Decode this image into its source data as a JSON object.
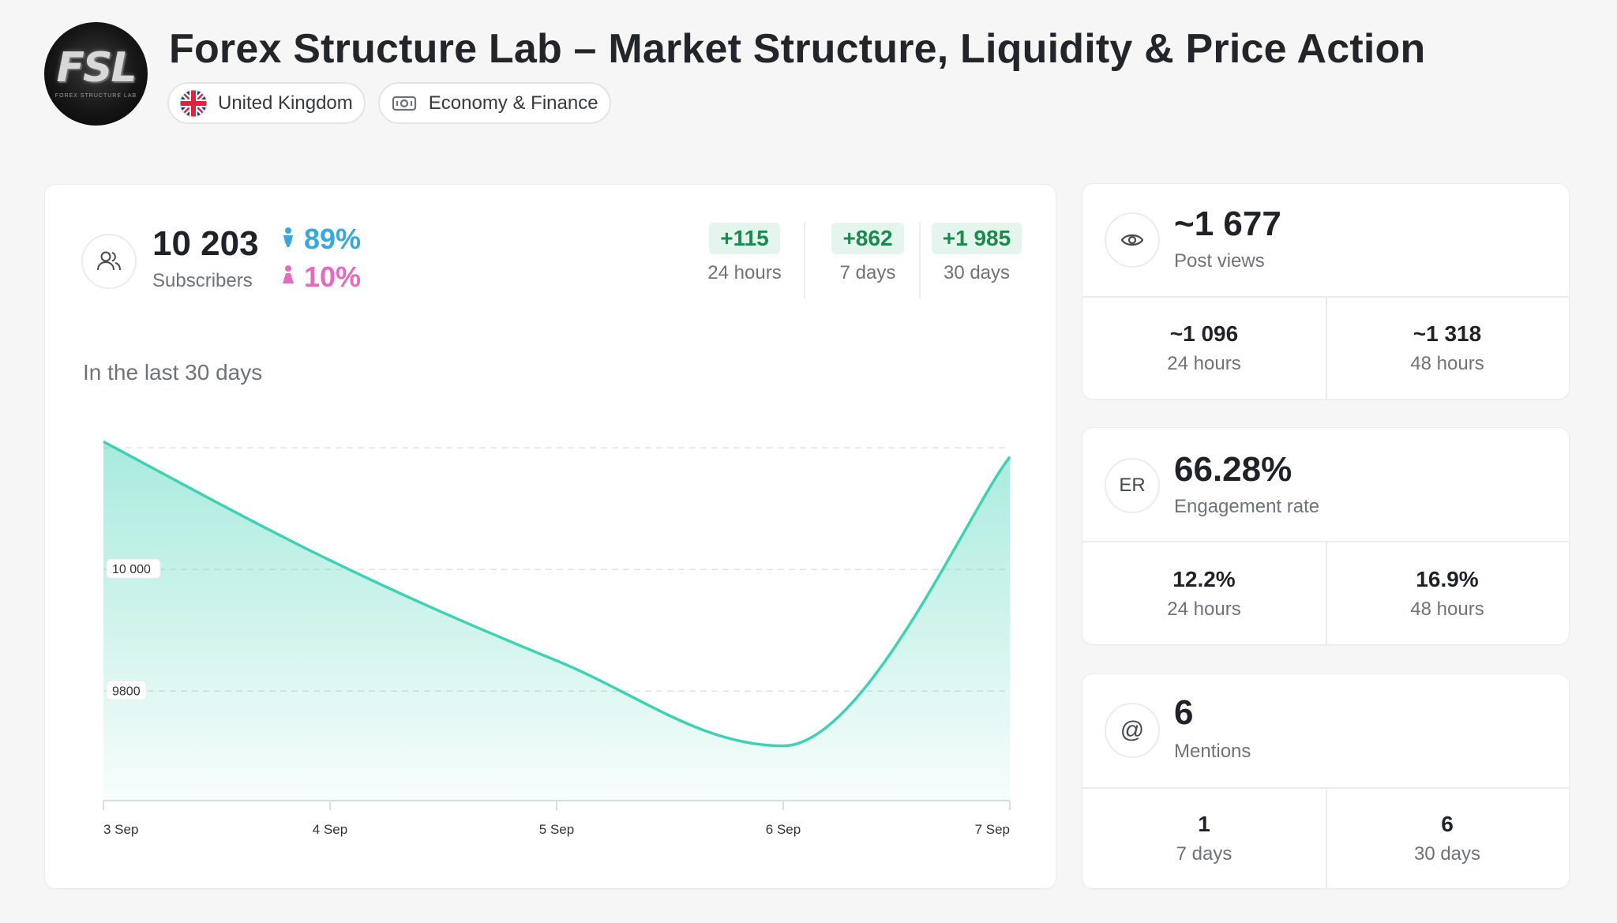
{
  "channel": {
    "title": "Forex Structure Lab – Market Structure, Liquidity & Price Action",
    "avatar_text": "FSL",
    "avatar_subtext": "FOREX STRUCTURE LAB",
    "country": "United Kingdom",
    "category": "Economy & Finance"
  },
  "subscribers": {
    "count": "10 203",
    "label": "Subscribers",
    "male_pct": "89%",
    "female_pct": "10%",
    "growth": [
      {
        "value": "+115",
        "label": "24 hours"
      },
      {
        "value": "+862",
        "label": "7 days"
      },
      {
        "value": "+1 985",
        "label": "30 days"
      }
    ]
  },
  "chart_title": "In the last 30 days",
  "chart_data": {
    "type": "area",
    "x": [
      "3 Sep",
      "4 Sep",
      "5 Sep",
      "6 Sep",
      "7 Sep"
    ],
    "values": [
      10210,
      10015,
      9850,
      9710,
      10185
    ],
    "ylim": [
      9620,
      10230
    ],
    "gridlines": [
      9800,
      10000,
      10200
    ],
    "gridline_labels": [
      "9800",
      "10 000"
    ],
    "color": "#3fd1b4",
    "grid": true
  },
  "post_views": {
    "total": "~1 677",
    "label": "Post views",
    "cells": [
      {
        "value": "~1 096",
        "label": "24 hours"
      },
      {
        "value": "~1 318",
        "label": "48 hours"
      }
    ]
  },
  "engagement": {
    "icon_text": "ER",
    "total": "66.28%",
    "label": "Engagement rate",
    "cells": [
      {
        "value": "12.2%",
        "label": "24 hours"
      },
      {
        "value": "16.9%",
        "label": "48 hours"
      }
    ]
  },
  "mentions": {
    "icon_text": "@",
    "total": "6",
    "label": "Mentions",
    "cells": [
      {
        "value": "1",
        "label": "7 days"
      },
      {
        "value": "6",
        "label": "30 days"
      }
    ]
  },
  "colors": {
    "accent": "#3fd1b4",
    "growth_text": "#1b8a4f",
    "growth_bg": "#e3f5ec",
    "male": "#3aa8de",
    "female": "#e46bbf"
  },
  "icons": {
    "subscribers": "users-icon",
    "views": "eye-icon",
    "country": "uk-flag-icon",
    "category": "banknote-icon",
    "male": "male-icon",
    "female": "female-icon"
  }
}
